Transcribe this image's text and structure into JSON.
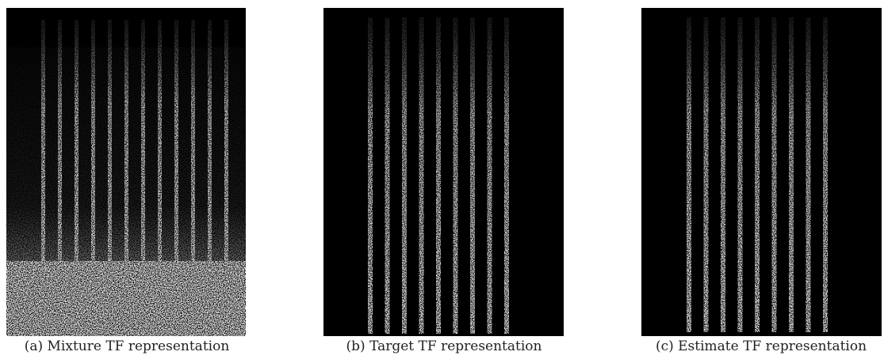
{
  "panels": [
    {
      "caption": "(a) Mixture TF representation"
    },
    {
      "caption": "(b) Target TF representation"
    },
    {
      "caption": "(c) Estimate TF representation"
    }
  ]
}
